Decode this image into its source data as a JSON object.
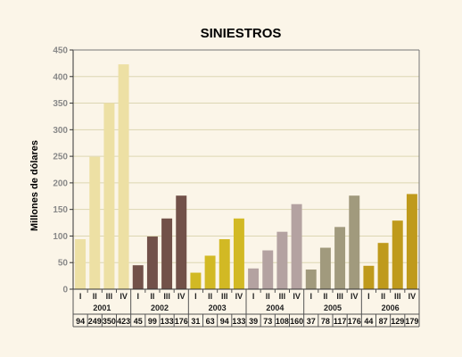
{
  "chart_data": {
    "type": "bar",
    "title": "SINIESTROS",
    "ylabel": "Millones de dólares",
    "xlabel": "",
    "ylim": [
      0,
      450
    ],
    "yticks": [
      0,
      50,
      100,
      150,
      200,
      250,
      300,
      350,
      400,
      450
    ],
    "grid": true,
    "legend": "none",
    "groups": [
      {
        "year": "2001",
        "color": "#ede0a4",
        "quarters": [
          "I",
          "II",
          "III",
          "IV"
        ],
        "values": [
          94,
          249,
          350,
          423
        ]
      },
      {
        "year": "2002",
        "color": "#725149",
        "quarters": [
          "I",
          "II",
          "III",
          "IV"
        ],
        "values": [
          45,
          99,
          133,
          176
        ]
      },
      {
        "year": "2003",
        "color": "#d2b924",
        "quarters": [
          "I",
          "II",
          "III",
          "IV"
        ],
        "values": [
          31,
          63,
          94,
          133
        ]
      },
      {
        "year": "2004",
        "color": "#b4a2a1",
        "quarters": [
          "I",
          "II",
          "III",
          "IV"
        ],
        "values": [
          39,
          73,
          108,
          160
        ]
      },
      {
        "year": "2005",
        "color": "#a19a7d",
        "quarters": [
          "I",
          "II",
          "III",
          "IV"
        ],
        "values": [
          37,
          78,
          117,
          176
        ]
      },
      {
        "year": "2006",
        "color": "#bf9a1c",
        "quarters": [
          "I",
          "II",
          "III",
          "IV"
        ],
        "values": [
          44,
          87,
          129,
          179
        ]
      }
    ]
  }
}
